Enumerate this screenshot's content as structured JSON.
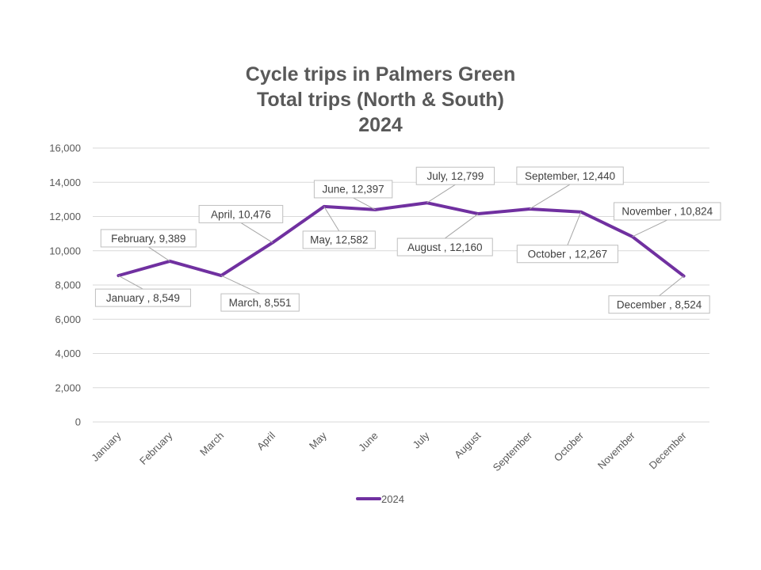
{
  "chart_data": {
    "type": "line",
    "title": [
      "Cycle trips in Palmers Green",
      "Total trips (North & South)",
      "2024"
    ],
    "categories": [
      "January",
      "February",
      "March",
      "April",
      "May",
      "June",
      "July",
      "August",
      "September",
      "October",
      "November",
      "December"
    ],
    "series": [
      {
        "name": "2024",
        "color": "#7030A0",
        "values": [
          8549,
          9389,
          8551,
          10476,
          12582,
          12397,
          12799,
          12160,
          12440,
          12267,
          10824,
          8524
        ]
      }
    ],
    "data_labels": [
      "January , 8,549",
      "February, 9,389",
      "March, 8,551",
      "April, 10,476",
      "May, 12,582",
      "June, 12,397",
      "July, 12,799",
      "August , 12,160",
      "September, 12,440",
      "October , 12,267",
      "November , 10,824",
      "December , 8,524"
    ],
    "y_ticks": [
      "0",
      "2,000",
      "4,000",
      "6,000",
      "8,000",
      "10,000",
      "12,000",
      "14,000",
      "16,000"
    ],
    "ylim": [
      0,
      16000
    ],
    "grid": true,
    "legend_position": "bottom",
    "xlabel": "",
    "ylabel": ""
  }
}
